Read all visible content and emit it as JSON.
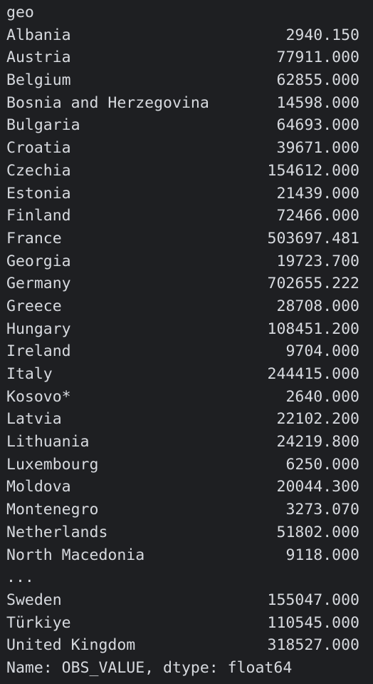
{
  "header": "geo",
  "rows": [
    {
      "country": "Albania",
      "value": "2940.150"
    },
    {
      "country": "Austria",
      "value": "77911.000"
    },
    {
      "country": "Belgium",
      "value": "62855.000"
    },
    {
      "country": "Bosnia and Herzegovina",
      "value": "14598.000"
    },
    {
      "country": "Bulgaria",
      "value": "64693.000"
    },
    {
      "country": "Croatia",
      "value": "39671.000"
    },
    {
      "country": "Czechia",
      "value": "154612.000"
    },
    {
      "country": "Estonia",
      "value": "21439.000"
    },
    {
      "country": "Finland",
      "value": "72466.000"
    },
    {
      "country": "France",
      "value": "503697.481"
    },
    {
      "country": "Georgia",
      "value": "19723.700"
    },
    {
      "country": "Germany",
      "value": "702655.222"
    },
    {
      "country": "Greece",
      "value": "28708.000"
    },
    {
      "country": "Hungary",
      "value": "108451.200"
    },
    {
      "country": "Ireland",
      "value": "9704.000"
    },
    {
      "country": "Italy",
      "value": "244415.000"
    },
    {
      "country": "Kosovo*",
      "value": "2640.000"
    },
    {
      "country": "Latvia",
      "value": "22102.200"
    },
    {
      "country": "Lithuania",
      "value": "24219.800"
    },
    {
      "country": "Luxembourg",
      "value": "6250.000"
    },
    {
      "country": "Moldova",
      "value": "20044.300"
    },
    {
      "country": "Montenegro",
      "value": "3273.070"
    },
    {
      "country": "Netherlands",
      "value": "51802.000"
    },
    {
      "country": "North Macedonia",
      "value": "9118.000"
    }
  ],
  "ellipsis": "...",
  "tail_rows": [
    {
      "country": "Sweden",
      "value": "155047.000"
    },
    {
      "country": "Türkiye",
      "value": "110545.000"
    },
    {
      "country": "United Kingdom",
      "value": "318527.000"
    }
  ],
  "footer": "Name: OBS_VALUE, dtype: float64"
}
